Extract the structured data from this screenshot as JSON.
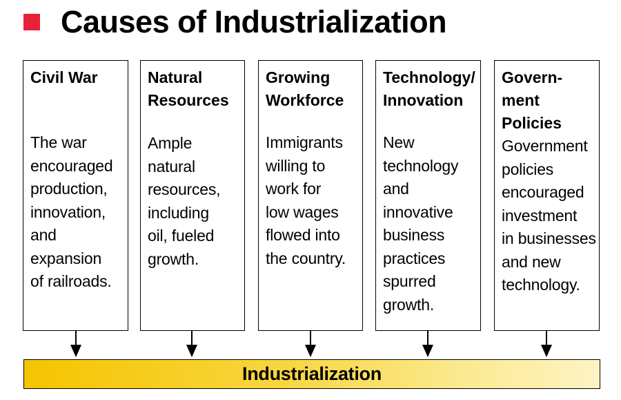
{
  "title": "Causes of Industrialization",
  "colors": {
    "bullet": "#e8213a",
    "bar_start": "#f5c400",
    "bar_end": "#fdf3c4"
  },
  "causes": [
    {
      "heading": "Civil War",
      "body": "The war\nencouraged\nproduction,\ninnovation,\nand\nexpansion\nof railroads."
    },
    {
      "heading": "Natural\nResources",
      "body": "Ample\nnatural\nresources,\nincluding\noil, fueled\ngrowth."
    },
    {
      "heading": "Growing\nWorkforce",
      "body": "Immigrants\nwilling to\nwork for\nlow wages\nflowed into\nthe country."
    },
    {
      "heading": "Technology/\nInnovation",
      "body": "New\ntechnology\nand\ninnovative\nbusiness\npractices\nspurred\ngrowth."
    },
    {
      "heading": "Govern-\nment\nPolicies",
      "body": "Government\npolicies\nencouraged\ninvestment\nin businesses\nand new\ntechnology."
    }
  ],
  "result": "Industrialization"
}
